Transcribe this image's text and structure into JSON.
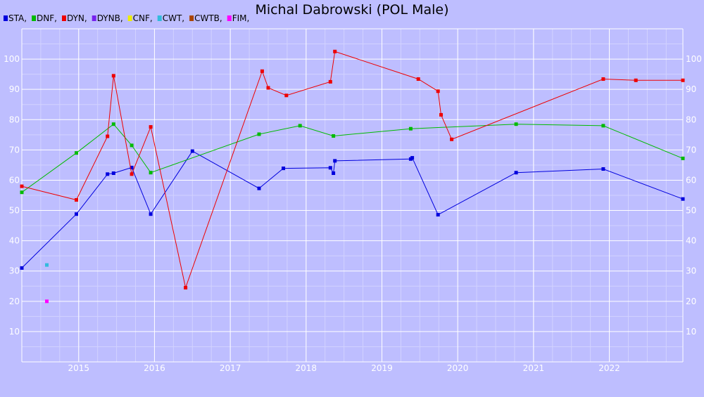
{
  "chart_data": {
    "type": "line",
    "title": "Michal Dabrowski (POL Male)",
    "x_range": [
      2014.25,
      2022.97
    ],
    "ylim": [
      0,
      110
    ],
    "x_ticks": [
      "2015",
      "2016",
      "2017",
      "2018",
      "2019",
      "2020",
      "2021",
      "2022"
    ],
    "y_ticks": [
      10,
      20,
      30,
      40,
      50,
      60,
      70,
      80,
      90,
      100
    ],
    "grid": true,
    "legend_position": "top-left",
    "series": [
      {
        "name": "STA",
        "color": "#0000dd",
        "points": [
          [
            2014.25,
            31.0
          ],
          [
            2014.97,
            48.8
          ],
          [
            2015.38,
            62.0
          ],
          [
            2015.46,
            62.3
          ],
          [
            2015.7,
            64.2
          ],
          [
            2015.95,
            48.8
          ],
          [
            2016.5,
            69.6
          ],
          [
            2017.38,
            57.3
          ],
          [
            2017.7,
            63.9
          ],
          [
            2018.32,
            64.1
          ],
          [
            2018.36,
            62.3
          ],
          [
            2018.38,
            66.4
          ],
          [
            2019.38,
            67.0
          ],
          [
            2019.4,
            67.4
          ],
          [
            2019.74,
            48.6
          ],
          [
            2020.77,
            62.5
          ],
          [
            2021.92,
            63.7
          ],
          [
            2022.97,
            53.8
          ]
        ]
      },
      {
        "name": "DNF",
        "color": "#00bb00",
        "points": [
          [
            2014.25,
            56.0
          ],
          [
            2014.97,
            69.0
          ],
          [
            2015.46,
            78.5
          ],
          [
            2015.7,
            71.5
          ],
          [
            2015.95,
            62.5
          ],
          [
            2017.38,
            75.2
          ],
          [
            2017.92,
            78.0
          ],
          [
            2018.36,
            74.6
          ],
          [
            2019.38,
            77.0
          ],
          [
            2020.77,
            78.5
          ],
          [
            2021.92,
            78.0
          ],
          [
            2022.97,
            67.2
          ]
        ]
      },
      {
        "name": "DYN",
        "color": "#ee0000",
        "points": [
          [
            2014.25,
            58.0
          ],
          [
            2014.97,
            53.5
          ],
          [
            2015.38,
            74.5
          ],
          [
            2015.46,
            94.5
          ],
          [
            2015.7,
            62.0
          ],
          [
            2015.95,
            77.6
          ],
          [
            2016.41,
            24.5
          ],
          [
            2017.42,
            96.0
          ],
          [
            2017.5,
            90.5
          ],
          [
            2017.74,
            88.0
          ],
          [
            2018.32,
            92.5
          ],
          [
            2018.38,
            102.5
          ],
          [
            2019.48,
            93.4
          ],
          [
            2019.74,
            89.4
          ],
          [
            2019.78,
            81.6
          ],
          [
            2019.92,
            73.5
          ],
          [
            2021.92,
            93.4
          ],
          [
            2022.35,
            93.0
          ],
          [
            2022.97,
            93.0
          ]
        ]
      },
      {
        "name": "DYNB",
        "color": "#7722ee",
        "points": []
      },
      {
        "name": "CNF",
        "color": "#eeee00",
        "points": []
      },
      {
        "name": "CWT",
        "color": "#33bbdd",
        "points": [
          [
            2014.58,
            32.0
          ]
        ]
      },
      {
        "name": "CWTB",
        "color": "#aa4400",
        "points": []
      },
      {
        "name": "FIM",
        "color": "#ff00ff",
        "points": [
          [
            2014.58,
            20.0
          ]
        ]
      }
    ]
  }
}
